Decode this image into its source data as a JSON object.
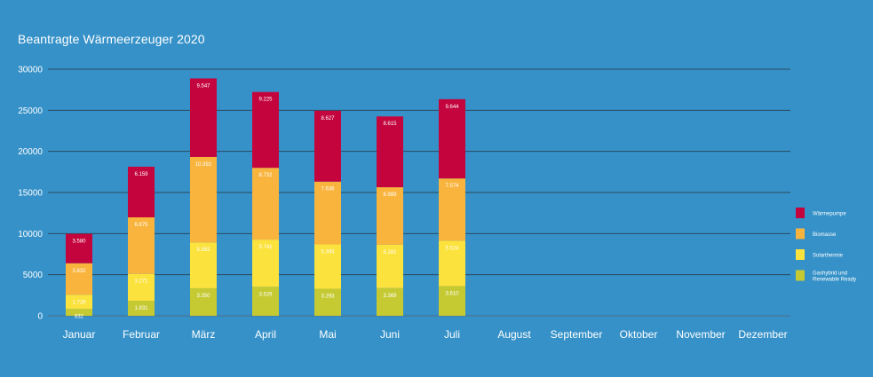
{
  "title": "Beantragte Wärmeerzeuger 2020",
  "chart_data": {
    "type": "bar",
    "stacked": true,
    "categories": [
      "Januar",
      "Februar",
      "März",
      "April",
      "Mai",
      "Juni",
      "Juli",
      "August",
      "September",
      "Oktober",
      "November",
      "Dezember"
    ],
    "ylim": [
      0,
      30000
    ],
    "yticks": [
      0,
      5000,
      10000,
      15000,
      20000,
      25000,
      30000
    ],
    "legend_position": "right",
    "series": [
      {
        "name": "Gashybrid und Renewable Ready",
        "color": "#c5ca33",
        "values": [
          832,
          1831,
          3350,
          3529,
          3293,
          3369,
          3610,
          null,
          null,
          null,
          null,
          null
        ],
        "labels": [
          "832",
          "1.831",
          "3.350",
          "3.529",
          "3.293",
          "3.369",
          "3.610",
          "",
          "",
          "",
          "",
          ""
        ]
      },
      {
        "name": "Solarthermie",
        "color": "#fbe23c",
        "values": [
          1729,
          3271,
          5582,
          5741,
          5393,
          5281,
          5524,
          null,
          null,
          null,
          null,
          null
        ],
        "labels": [
          "1.729",
          "3.271",
          "5.582",
          "5.741",
          "5.393",
          "5.281",
          "5.524",
          "",
          "",
          "",
          "",
          ""
        ]
      },
      {
        "name": "Biomasse",
        "color": "#f9b43d",
        "values": [
          3832,
          6875,
          10392,
          8732,
          7636,
          6989,
          7574,
          null,
          null,
          null,
          null,
          null
        ],
        "labels": [
          "3.832",
          "6.875",
          "10.392",
          "8.732",
          "7.636",
          "6.989",
          "7.574",
          "",
          "",
          "",
          "",
          ""
        ]
      },
      {
        "name": "Wärmepumpe",
        "color": "#c4053d",
        "values": [
          3580,
          6159,
          9547,
          9225,
          8627,
          8615,
          9644,
          null,
          null,
          null,
          null,
          null
        ],
        "labels": [
          "3.580",
          "6.159",
          "9.547",
          "9.225",
          "8.627",
          "8.615",
          "9.644",
          "",
          "",
          "",
          "",
          ""
        ]
      }
    ],
    "legend_order": [
      "Wärmepumpe",
      "Biomasse",
      "Solarthermie",
      "Gashybrid und Renewable Ready"
    ]
  }
}
